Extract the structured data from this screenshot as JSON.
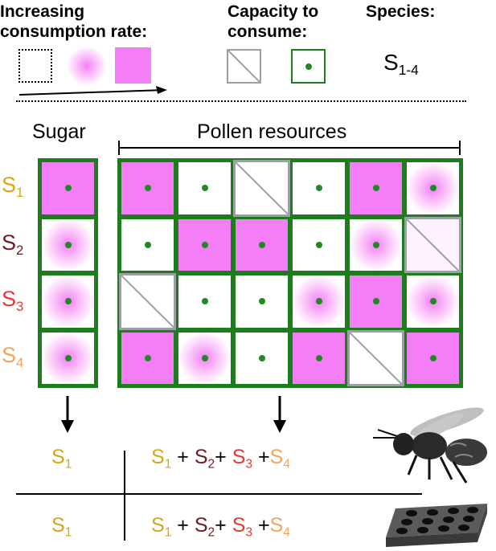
{
  "legend": {
    "rate_title_line1": "Increasing",
    "rate_title_line2": "consumption rate:",
    "capacity_title_line1": "Capacity to",
    "capacity_title_line2": "consume:",
    "species_title": "Species:",
    "species_symbol": "S",
    "species_sub": "1-4"
  },
  "columns": {
    "sugar": "Sugar",
    "pollen": "Pollen resources"
  },
  "species": [
    {
      "letter": "S",
      "sub": "1",
      "color": "#d7a618"
    },
    {
      "letter": "S",
      "sub": "2",
      "color": "#6b1e1e"
    },
    {
      "letter": "S",
      "sub": "3",
      "color": "#e33b35"
    },
    {
      "letter": "S",
      "sub": "4",
      "color": "#f5a35d"
    }
  ],
  "grid": {
    "sugar": [
      "full",
      "diffuse",
      "diffuse",
      "diffuse"
    ],
    "pollen": [
      [
        "full",
        "none",
        "nocap",
        "none",
        "full",
        "diffuse"
      ],
      [
        "none",
        "full",
        "full",
        "none",
        "diffuse",
        "nocap-faint"
      ],
      [
        "nocap",
        "none",
        "none",
        "diffuse",
        "full",
        "diffuse"
      ],
      [
        "full",
        "diffuse",
        "none",
        "full",
        "nocap",
        "full"
      ]
    ]
  },
  "summary": {
    "rows": [
      {
        "left": {
          "s": "S",
          "sub": "1"
        },
        "terms": [
          {
            "s": "S",
            "sub": "1",
            "color": "#d7a618"
          },
          {
            "s": "S",
            "sub": "2",
            "color": "#6b1e1e"
          },
          {
            "s": "S",
            "sub": "3",
            "color": "#e33b35"
          },
          {
            "s": "S",
            "sub": "4",
            "color": "#f5a35d"
          }
        ],
        "plus": "+",
        "icon": "bee-icon"
      },
      {
        "left": {
          "s": "S",
          "sub": "1"
        },
        "terms": [
          {
            "s": "S",
            "sub": "1",
            "color": "#d7a618"
          },
          {
            "s": "S",
            "sub": "2",
            "color": "#6b1e1e"
          },
          {
            "s": "S",
            "sub": "3",
            "color": "#e33b35"
          },
          {
            "s": "S",
            "sub": "4",
            "color": "#f5a35d"
          }
        ],
        "plus": "+",
        "icon": "well-plate-icon"
      }
    ]
  },
  "colors": {
    "magenta": "#f47ef5",
    "green": "#1d7d1d",
    "gray": "#9aa0a6"
  }
}
